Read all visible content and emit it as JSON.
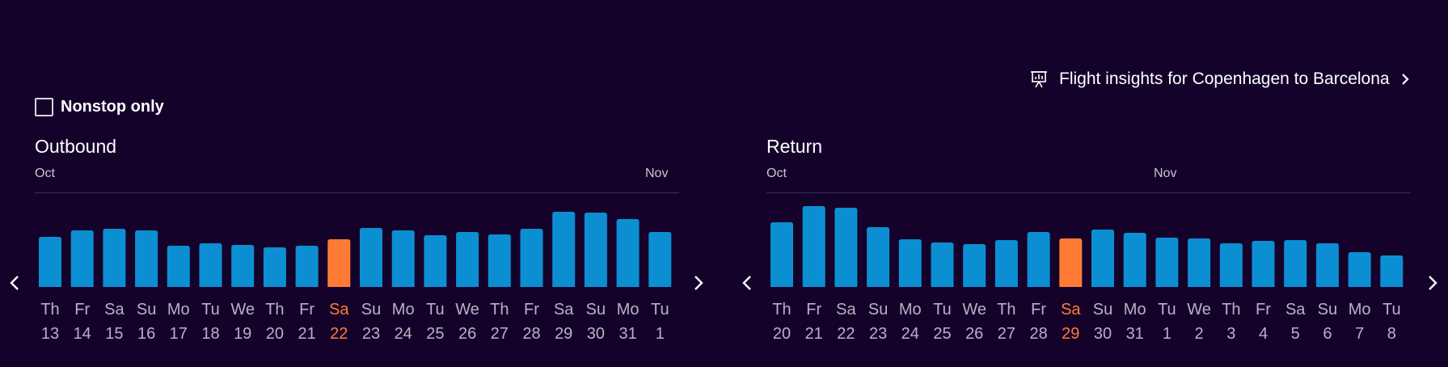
{
  "insights": {
    "label": "Flight insights for Copenhagen to Barcelona"
  },
  "nonstop": {
    "label": "Nonstop only",
    "checked": false
  },
  "colors": {
    "bar": "#0b8fd2",
    "selected": "#ff7b35",
    "background": "#15022b"
  },
  "outbound": {
    "title": "Outbound",
    "months": [
      {
        "label": "Oct"
      },
      {
        "label": "Nov"
      }
    ],
    "days": [
      {
        "dow": "Th",
        "date": "13"
      },
      {
        "dow": "Fr",
        "date": "14"
      },
      {
        "dow": "Sa",
        "date": "15"
      },
      {
        "dow": "Su",
        "date": "16"
      },
      {
        "dow": "Mo",
        "date": "17"
      },
      {
        "dow": "Tu",
        "date": "18"
      },
      {
        "dow": "We",
        "date": "19"
      },
      {
        "dow": "Th",
        "date": "20"
      },
      {
        "dow": "Fr",
        "date": "21"
      },
      {
        "dow": "Sa",
        "date": "22"
      },
      {
        "dow": "Su",
        "date": "23"
      },
      {
        "dow": "Mo",
        "date": "24"
      },
      {
        "dow": "Tu",
        "date": "25"
      },
      {
        "dow": "We",
        "date": "26"
      },
      {
        "dow": "Th",
        "date": "27"
      },
      {
        "dow": "Fr",
        "date": "28"
      },
      {
        "dow": "Sa",
        "date": "29"
      },
      {
        "dow": "Su",
        "date": "30"
      },
      {
        "dow": "Mo",
        "date": "31"
      },
      {
        "dow": "Tu",
        "date": "1"
      }
    ],
    "selected_index": 9,
    "relative_price_levels": [
      0.62,
      0.7,
      0.72,
      0.7,
      0.51,
      0.54,
      0.52,
      0.49,
      0.51,
      0.59,
      0.73,
      0.7,
      0.64,
      0.68,
      0.65,
      0.72,
      0.93,
      0.92,
      0.84,
      0.68
    ]
  },
  "return": {
    "title": "Return",
    "months": [
      {
        "label": "Oct"
      },
      {
        "label": "Nov"
      }
    ],
    "days": [
      {
        "dow": "Th",
        "date": "20"
      },
      {
        "dow": "Fr",
        "date": "21"
      },
      {
        "dow": "Sa",
        "date": "22"
      },
      {
        "dow": "Su",
        "date": "23"
      },
      {
        "dow": "Mo",
        "date": "24"
      },
      {
        "dow": "Tu",
        "date": "25"
      },
      {
        "dow": "We",
        "date": "26"
      },
      {
        "dow": "Th",
        "date": "27"
      },
      {
        "dow": "Fr",
        "date": "28"
      },
      {
        "dow": "Sa",
        "date": "29"
      },
      {
        "dow": "Su",
        "date": "30"
      },
      {
        "dow": "Mo",
        "date": "31"
      },
      {
        "dow": "Tu",
        "date": "1"
      },
      {
        "dow": "We",
        "date": "2"
      },
      {
        "dow": "Th",
        "date": "3"
      },
      {
        "dow": "Fr",
        "date": "4"
      },
      {
        "dow": "Sa",
        "date": "5"
      },
      {
        "dow": "Su",
        "date": "6"
      },
      {
        "dow": "Mo",
        "date": "7"
      },
      {
        "dow": "Tu",
        "date": "8"
      }
    ],
    "selected_index": 9,
    "relative_price_levels": [
      0.8,
      1.0,
      0.98,
      0.74,
      0.59,
      0.55,
      0.53,
      0.58,
      0.68,
      0.6,
      0.71,
      0.67,
      0.61,
      0.6,
      0.54,
      0.57,
      0.58,
      0.54,
      0.43,
      0.39
    ]
  }
}
